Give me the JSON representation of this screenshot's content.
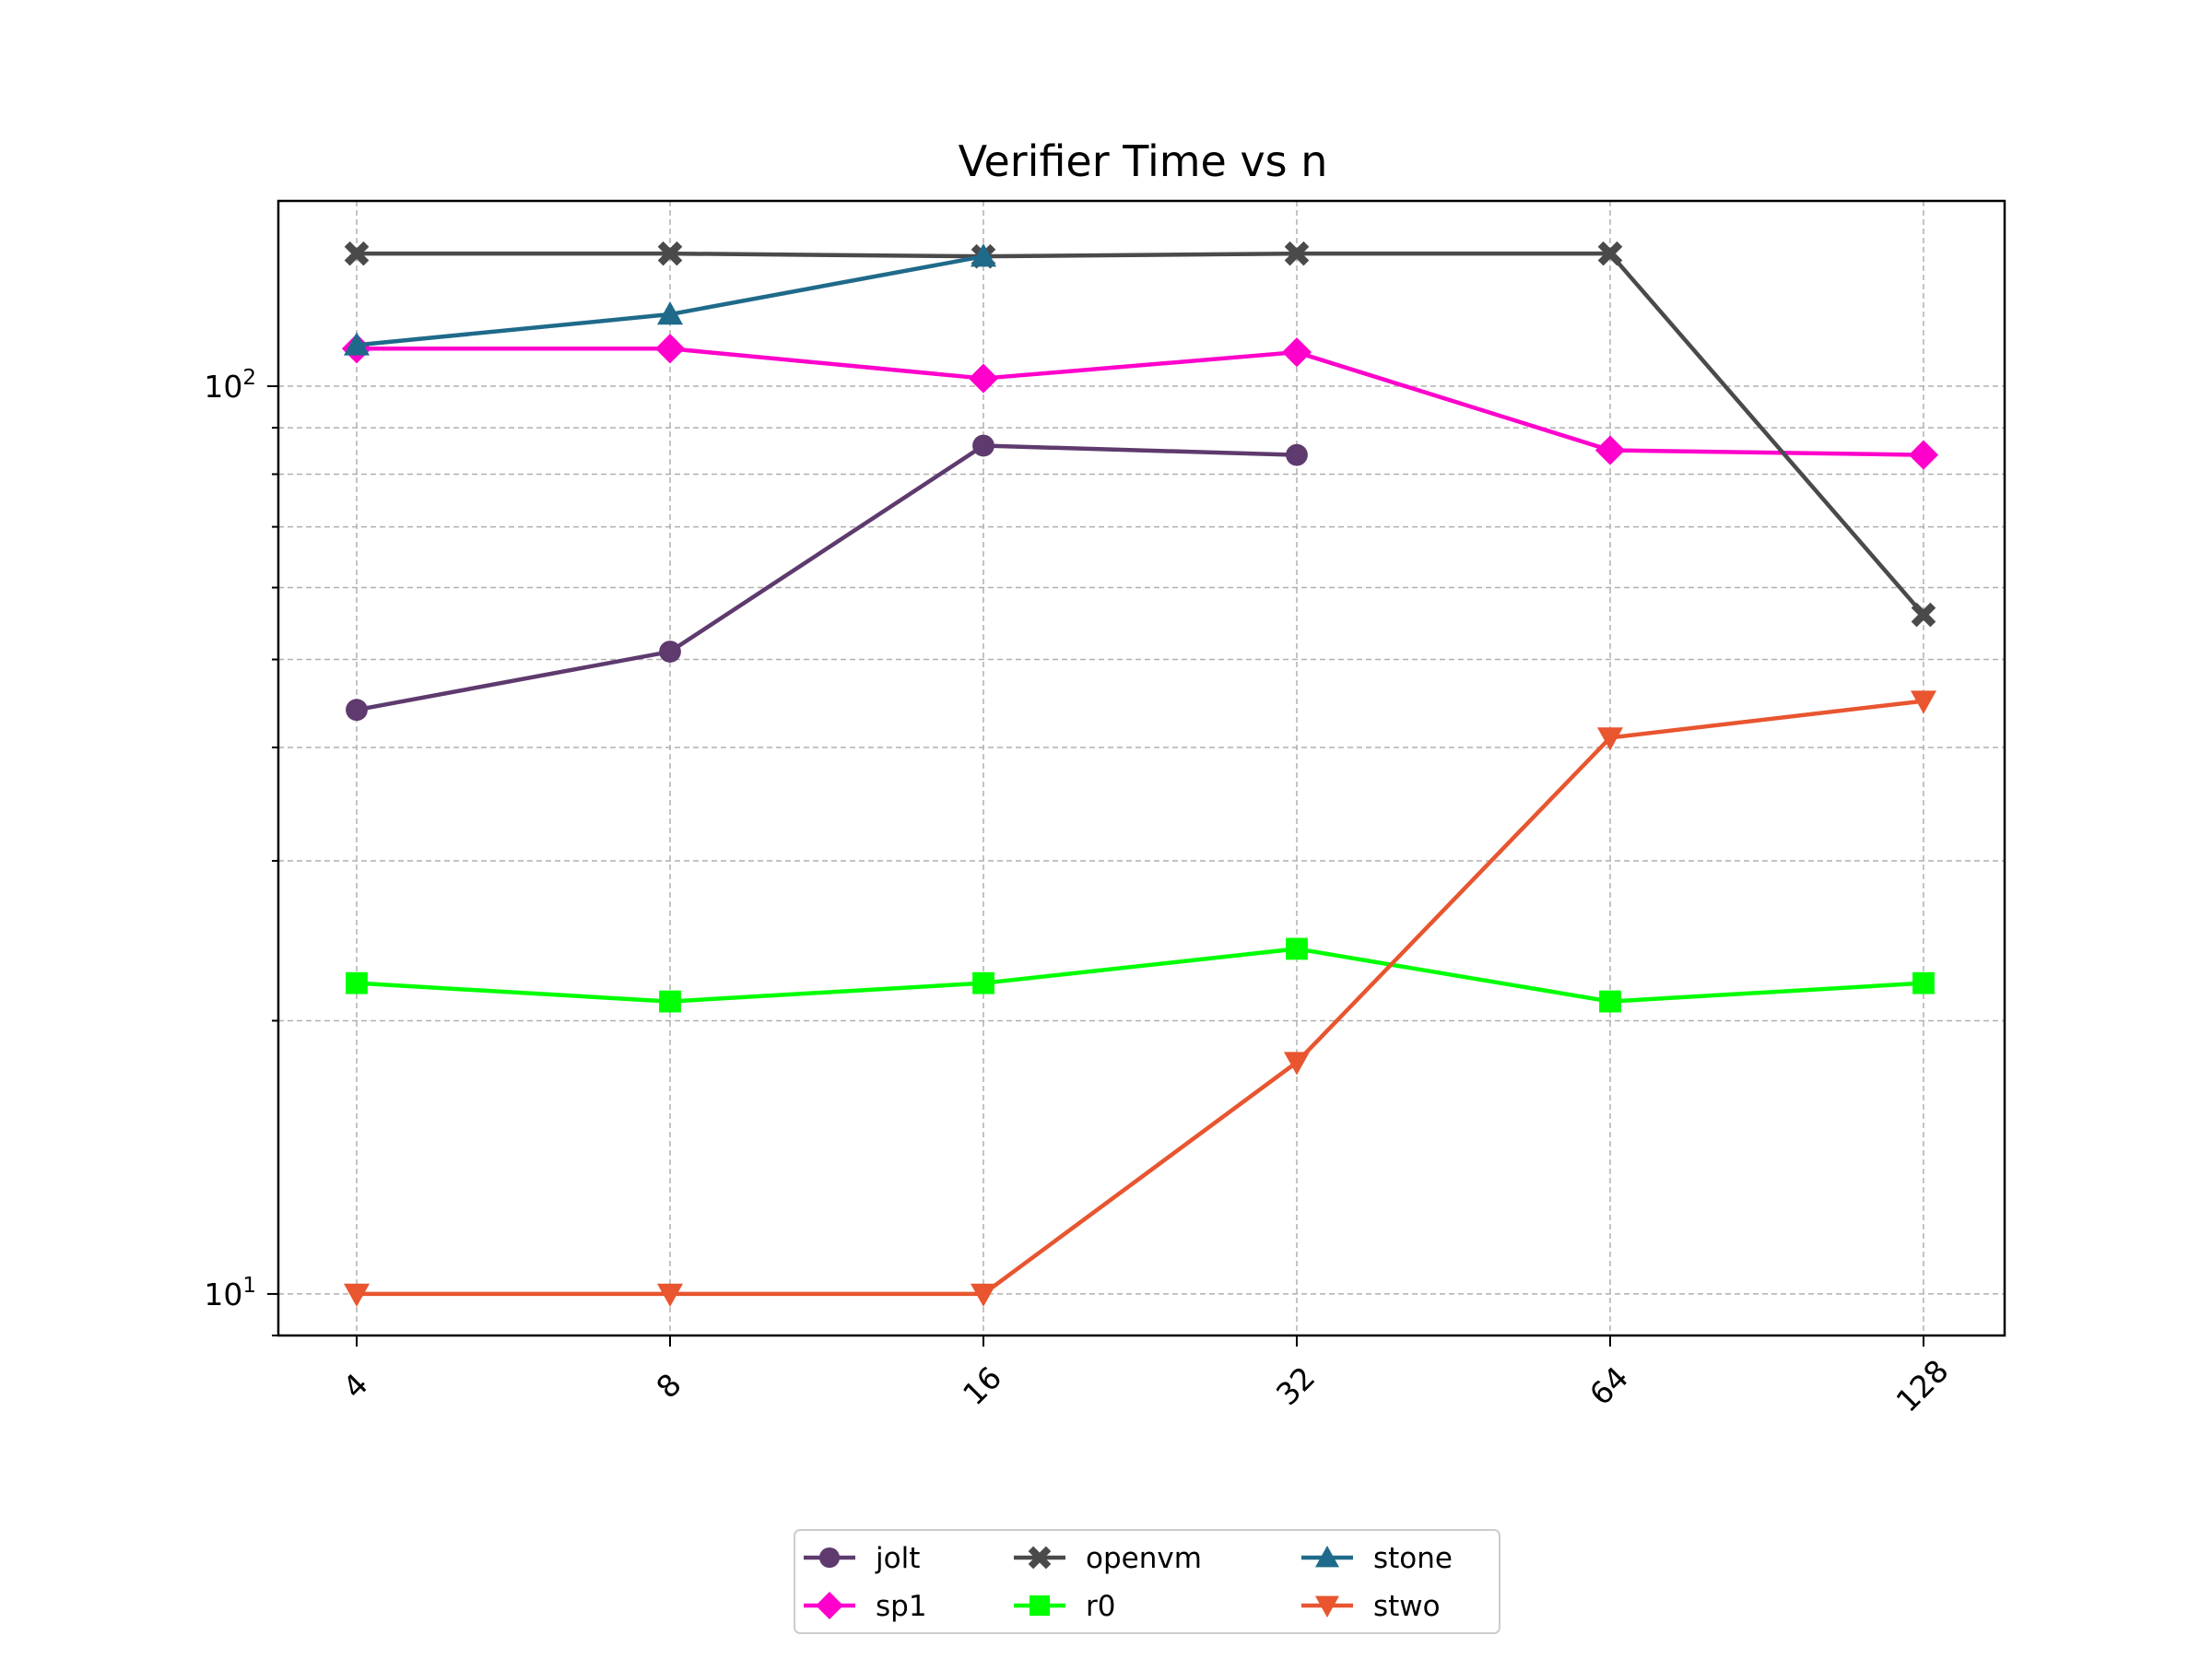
{
  "chart_data": {
    "type": "line",
    "title": "Verifier Time vs n",
    "xlabel": "",
    "ylabel": "",
    "x_scale": "categorical",
    "y_scale": "log",
    "ylim": [
      9.0,
      160
    ],
    "categories": [
      "4",
      "8",
      "16",
      "32",
      "64",
      "128"
    ],
    "y_major_ticks": [
      {
        "value": 10,
        "base": "10",
        "exp": "1"
      },
      {
        "value": 100,
        "base": "10",
        "exp": "2"
      }
    ],
    "grid": true,
    "legend_placement": "bottom-center",
    "series": [
      {
        "name": "jolt",
        "color": "#5e3a6e",
        "marker": "circle",
        "values": [
          44,
          51,
          86,
          84,
          null,
          null
        ]
      },
      {
        "name": "sp1",
        "color": "#ff00cc",
        "marker": "diamond",
        "values": [
          110,
          110,
          102,
          109,
          85,
          84
        ]
      },
      {
        "name": "openvm",
        "color": "#4a4a4a",
        "marker": "x",
        "values": [
          140,
          140,
          139,
          140,
          140,
          56
        ]
      },
      {
        "name": "r0",
        "color": "#00ff00",
        "marker": "square",
        "values": [
          22,
          21,
          22,
          24,
          21,
          22
        ]
      },
      {
        "name": "stone",
        "color": "#1f6a8a",
        "marker": "triangle-up",
        "values": [
          111,
          120,
          139,
          null,
          null,
          null
        ]
      },
      {
        "name": "stwo",
        "color": "#e8552f",
        "marker": "triangle-down",
        "values": [
          10,
          10,
          10,
          18,
          41,
          45
        ]
      }
    ]
  }
}
